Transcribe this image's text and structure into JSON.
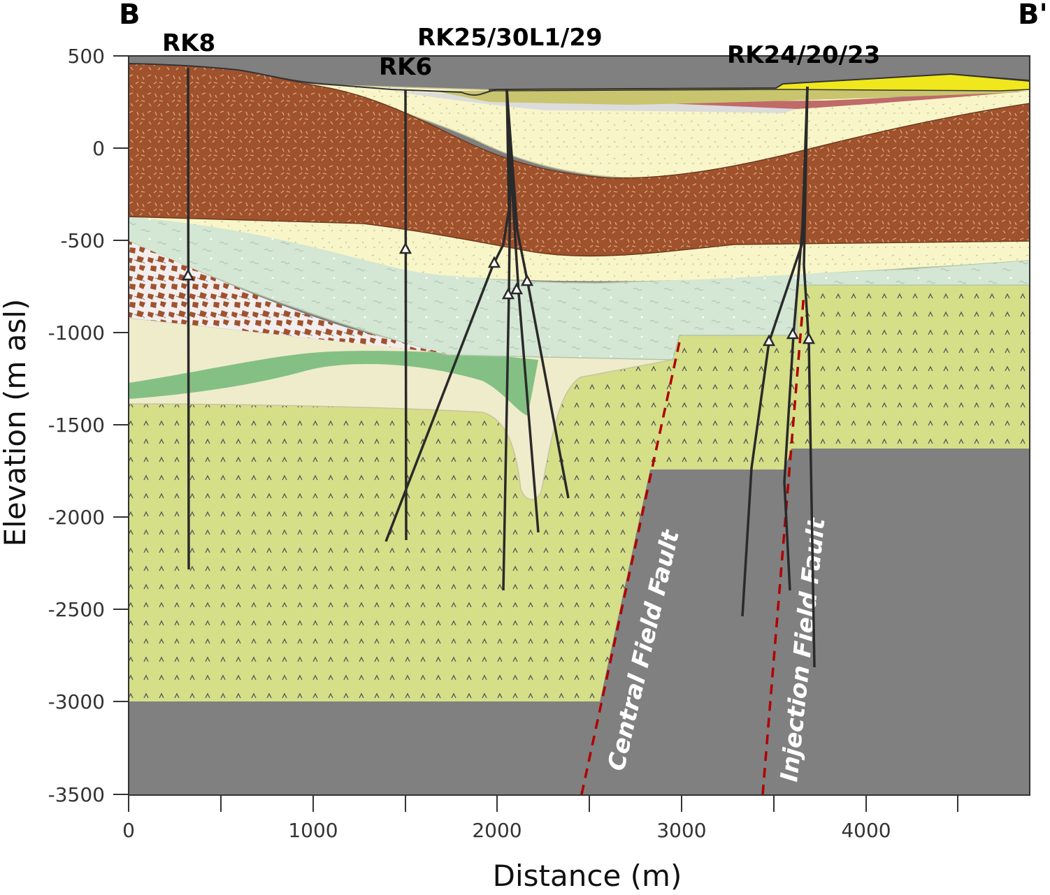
{
  "section": {
    "start_label": "B",
    "end_label": "B'"
  },
  "axes": {
    "x_title": "Distance (m)",
    "y_title": "Elevation (m asl)",
    "x_ticks": [
      "0",
      "1000",
      "2000",
      "3000",
      "4000"
    ],
    "y_ticks": [
      "500",
      "0",
      "-500",
      "-1000",
      "-1500",
      "-2000",
      "-2500",
      "-3000",
      "-3500"
    ]
  },
  "wells": [
    {
      "label": "RK8"
    },
    {
      "label": "RK6"
    },
    {
      "label": "RK25/30L1/29"
    },
    {
      "label": "RK24/20/23"
    }
  ],
  "faults": [
    {
      "label": "Central Field Fault"
    },
    {
      "label": "Injection Field Fault"
    }
  ],
  "colors": {
    "brown_volcanic": "#a0522d",
    "pale_yellow": "#f8f6c8",
    "pale_green": "#d4e6d4",
    "olive_green": "#d4df88",
    "basement_gray": "#808080",
    "green_band": "#84c084",
    "cream": "#efeccc",
    "yellow_top": "#f0e81c",
    "fault_red": "#b00000"
  }
}
